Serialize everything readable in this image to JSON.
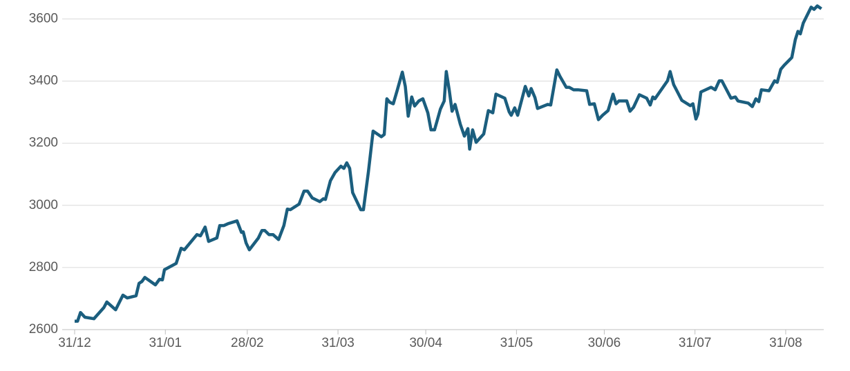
{
  "chart_data": {
    "type": "line",
    "x": [
      0,
      1,
      2,
      3.5,
      6.6,
      10,
      11,
      14,
      16.5,
      18,
      21,
      22,
      23,
      24,
      27.6,
      29,
      30,
      30.7,
      34.7,
      36.4,
      37.5,
      41.8,
      43,
      44.6,
      45.8,
      48.6,
      49.6,
      51,
      52.4,
      55.5,
      57,
      57.6,
      58.6,
      59.7,
      62.8,
      64,
      65,
      66.4,
      67.8,
      69.7,
      71.5,
      72.7,
      73.7,
      76.7,
      78.4,
      79.6,
      81.2,
      83.8,
      85,
      85.7,
      87.4,
      89,
      91,
      92,
      93,
      94,
      95,
      97.8,
      98.7,
      100.4,
      102,
      104.8,
      105.8,
      106.7,
      107.7,
      108.9,
      110.3,
      112,
      113,
      114,
      115.2,
      116.2,
      117.6,
      119,
      120.7,
      121.8,
      123,
      125,
      126.3,
      127,
      128,
      129,
      130,
      131.8,
      133.2,
      134.4,
      135,
      136,
      137.2,
      139.8,
      141.4,
      142.9,
      144,
      147,
      148.5,
      149.2,
      150.4,
      151.4,
      154,
      155.2,
      156,
      157.3,
      158.2,
      161.7,
      162.7,
      164.8,
      165.8,
      168,
      169,
      170.5,
      172,
      175,
      176,
      177.6,
      179,
      180.4,
      182.3,
      184,
      185,
      186,
      188.7,
      189.8,
      191,
      193,
      195.5,
      196.7,
      197.6,
      198.3,
      202.6,
      203.5,
      204.7,
      207.5,
      210.4,
      211.3,
      212.3,
      213,
      214,
      217.5,
      218.9,
      220.3,
      221.2,
      224.3,
      225.8,
      226.7,
      230.2,
      231.6,
      232.8,
      233.8,
      234.7,
      237.3,
      239.2,
      240.1,
      241.3,
      242.5,
      245.1,
      246.3,
      247.2,
      248,
      249,
      251.7,
      252.7,
      253.8,
      255.2
    ],
    "series": [
      {
        "color": "#1b5e7e",
        "values": [
          2627,
          2627,
          2655,
          2640,
          2635,
          2671,
          2689,
          2664,
          2711,
          2702,
          2709,
          2749,
          2755,
          2768,
          2744,
          2762,
          2760,
          2793,
          2813,
          2862,
          2857,
          2906,
          2902,
          2930,
          2884,
          2895,
          2935,
          2935,
          2941,
          2950,
          2913,
          2915,
          2879,
          2857,
          2895,
          2919,
          2919,
          2906,
          2906,
          2890,
          2935,
          2988,
          2986,
          3004,
          3046,
          3046,
          3024,
          3012,
          3021,
          3019,
          3079,
          3106,
          3126,
          3119,
          3137,
          3119,
          3041,
          2986,
          2986,
          3108,
          3239,
          3221,
          3228,
          3343,
          3332,
          3327,
          3372,
          3429,
          3383,
          3287,
          3349,
          3320,
          3336,
          3343,
          3298,
          3243,
          3243,
          3310,
          3336,
          3431,
          3372,
          3303,
          3325,
          3261,
          3223,
          3247,
          3181,
          3243,
          3203,
          3230,
          3305,
          3298,
          3358,
          3345,
          3301,
          3290,
          3314,
          3290,
          3383,
          3352,
          3376,
          3347,
          3312,
          3325,
          3323,
          3436,
          3416,
          3380,
          3380,
          3372,
          3372,
          3369,
          3325,
          3327,
          3276,
          3290,
          3305,
          3358,
          3327,
          3336,
          3336,
          3303,
          3316,
          3356,
          3345,
          3323,
          3349,
          3343,
          3401,
          3431,
          3389,
          3338,
          3321,
          3327,
          3278,
          3294,
          3365,
          3380,
          3372,
          3401,
          3401,
          3345,
          3349,
          3336,
          3329,
          3318,
          3343,
          3334,
          3372,
          3369,
          3401,
          3396,
          3438,
          3451,
          3476,
          3534,
          3560,
          3552,
          3587,
          3638,
          3631,
          3642,
          3633
        ]
      }
    ],
    "xlim": [
      -4.25,
      256
    ],
    "xticks": [
      {
        "value": 0,
        "label": "31/12"
      },
      {
        "value": 31,
        "label": "31/01"
      },
      {
        "value": 59,
        "label": "28/02"
      },
      {
        "value": 90,
        "label": "31/03"
      },
      {
        "value": 120,
        "label": "30/04"
      },
      {
        "value": 151,
        "label": "31/05"
      },
      {
        "value": 181,
        "label": "30/06"
      },
      {
        "value": 212,
        "label": "31/07"
      },
      {
        "value": 243,
        "label": "31/08"
      }
    ],
    "ylim": [
      2600,
      3650
    ],
    "yticks": [
      2600,
      2800,
      3000,
      3200,
      3400,
      3600
    ],
    "grid": true
  }
}
